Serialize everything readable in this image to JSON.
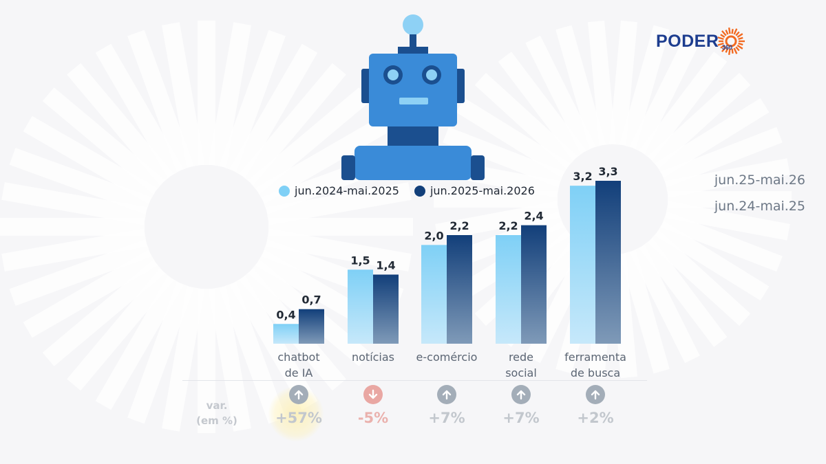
{
  "brand": {
    "name": "PODER",
    "sub": "360",
    "colors": {
      "navy": "#1d3d8f",
      "orange": "#f26a21"
    }
  },
  "side_labels": [
    "jun.25-mai.26",
    "jun.24-mai.25"
  ],
  "colors": {
    "series_light": "#7fd0f6",
    "series_dark": "#123f7a",
    "up": "#a3adb8",
    "down": "#e9a7a3",
    "up_text": "#c2c7cd",
    "down_text": "#eab1ad"
  },
  "chart_data": {
    "type": "bar",
    "categories": [
      "chatbot\nde IA",
      "notícias",
      "e-comércio",
      "rede\nsocial",
      "ferramenta\nde busca"
    ],
    "series": [
      {
        "name": "jun.2024-mai.2025",
        "values": [
          0.4,
          1.5,
          2.0,
          2.2,
          3.2
        ],
        "labels": [
          "0,4",
          "1,5",
          "2,0",
          "2,2",
          "3,2"
        ]
      },
      {
        "name": "jun.2025-mai.2026",
        "values": [
          0.7,
          1.4,
          2.2,
          2.4,
          3.3
        ],
        "labels": [
          "0,7",
          "1,4",
          "2,2",
          "2,4",
          "3,3"
        ]
      }
    ],
    "ylim": [
      0,
      3.3
    ],
    "legend": "top",
    "grid": false
  },
  "variation": {
    "title": "var.\n(em %)",
    "items": [
      {
        "direction": "up",
        "value": "+57%"
      },
      {
        "direction": "down",
        "value": "-5%"
      },
      {
        "direction": "up",
        "value": "+7%"
      },
      {
        "direction": "up",
        "value": "+7%"
      },
      {
        "direction": "up",
        "value": "+2%"
      }
    ]
  }
}
